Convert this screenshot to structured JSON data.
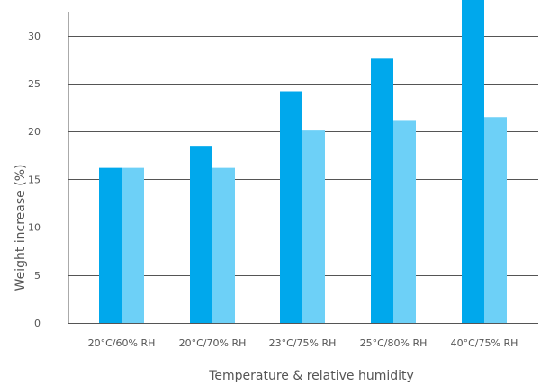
{
  "chart_data": {
    "type": "bar",
    "title": "",
    "xlabel": "Temperature & relative humidity",
    "ylabel": "Weight increase (%)",
    "categories": [
      "20°C/60% RH",
      "20°C/70% RH",
      "23°C/75% RH",
      "25°C/80% RH",
      "40°C/75% RH"
    ],
    "series": [
      {
        "values": [
          16.2,
          18.5,
          24.2,
          27.6,
          34.5
        ],
        "color": "#00a8ec"
      },
      {
        "values": [
          16.2,
          16.2,
          20.1,
          21.2,
          21.5
        ],
        "color": "#6dd0f7"
      }
    ],
    "ylim": [
      0,
      33
    ],
    "yticks": [
      0,
      5,
      10,
      15,
      20,
      25,
      30
    ],
    "grid": true,
    "legend": "none",
    "colors": {
      "grid": "#555555",
      "text": "#555555"
    }
  }
}
